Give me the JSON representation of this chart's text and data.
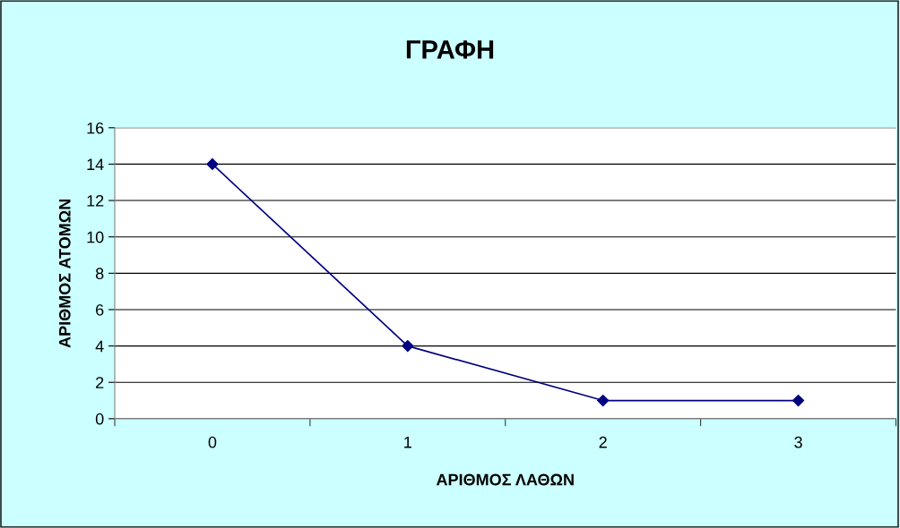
{
  "chart_data": {
    "type": "line",
    "title": "ΓΡΑΦΗ",
    "xlabel": "ΑΡΙΘΜΟΣ ΛΑΘΩΝ",
    "ylabel": "ΑΡΙΘΜΟΣ ΑΤΟΜΩΝ",
    "categories": [
      "0",
      "1",
      "2",
      "3"
    ],
    "series": [
      {
        "color": "#000080",
        "values": [
          14,
          4,
          1,
          1
        ]
      }
    ],
    "ylim": [
      0,
      16
    ],
    "yticks": [
      0,
      2,
      4,
      6,
      8,
      10,
      12,
      14,
      16
    ],
    "grid": "y",
    "marker": "diamond",
    "line_style": "solid",
    "legend": false
  }
}
